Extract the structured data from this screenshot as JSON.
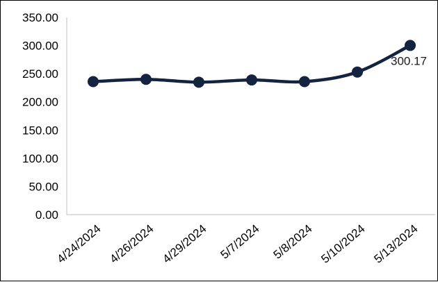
{
  "chart_data": {
    "type": "line",
    "title": "",
    "xlabel": "",
    "ylabel": "",
    "categories": [
      "4/24/2024",
      "4/26/2024",
      "4/29/2024",
      "5/7/2024",
      "5/8/2024",
      "5/10/2024",
      "5/13/2024"
    ],
    "series": [
      {
        "values": [
          236,
          240,
          235,
          239,
          236,
          253,
          300.17
        ],
        "color": "#14233f"
      }
    ],
    "y_ticks": [
      "0.00",
      "50.00",
      "100.00",
      "150.00",
      "200.00",
      "250.00",
      "300.00",
      "350.00"
    ],
    "ylim": [
      0,
      350
    ],
    "data_labels": [
      {
        "index": 6,
        "text": "300.17"
      }
    ],
    "grid": false,
    "legend": "none",
    "smooth": true
  }
}
